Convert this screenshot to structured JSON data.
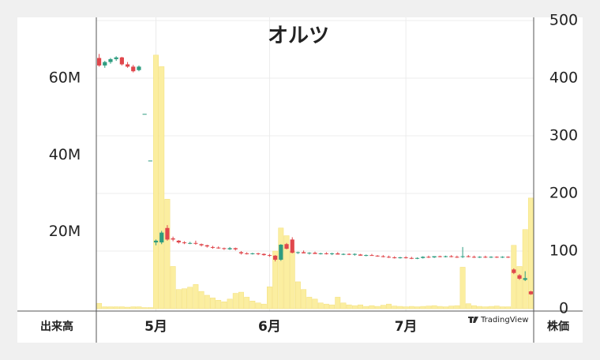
{
  "chart_data": {
    "type": "candlestick",
    "title": "オルツ",
    "y_label": "株価",
    "watermark": "TradingView",
    "categories": [
      null,
      null,
      null,
      null,
      null,
      null,
      null,
      null,
      null,
      null,
      "5月",
      null,
      null,
      null,
      null,
      null,
      null,
      null,
      null,
      null,
      null,
      null,
      null,
      null,
      null,
      null,
      null,
      null,
      null,
      null,
      "6月",
      null,
      null,
      null,
      null,
      null,
      null,
      null,
      null,
      null,
      null,
      null,
      null,
      null,
      null,
      null,
      null,
      null,
      null,
      null,
      null,
      null,
      null,
      null,
      "7月",
      null,
      null,
      null,
      null,
      null,
      null,
      null,
      null,
      null,
      null,
      null,
      null,
      null,
      null,
      null,
      null,
      null,
      null,
      null,
      null,
      null,
      null
    ],
    "open": [
      435,
      422,
      428,
      433,
      436,
      424,
      420,
      414,
      338,
      257,
      115,
      115,
      140,
      122,
      118,
      115,
      114,
      114,
      112,
      110,
      107,
      106,
      105,
      103,
      105,
      98,
      96,
      95,
      96,
      95,
      93,
      92,
      85,
      112,
      120,
      97,
      98,
      96,
      97,
      95,
      96,
      95,
      96,
      94,
      95,
      94,
      94,
      92,
      93,
      92,
      91,
      90,
      89,
      88,
      89,
      88,
      87,
      88,
      90,
      89,
      91,
      90,
      91,
      90,
      90,
      91,
      90,
      89,
      90,
      89,
      90,
      89,
      90,
      68,
      58,
      50,
      30
    ],
    "high": [
      442,
      430,
      435,
      438,
      437,
      428,
      423,
      422,
      338,
      257,
      120,
      135,
      145,
      125,
      119,
      117,
      116,
      118,
      113,
      111,
      109,
      108,
      106,
      107,
      106,
      100,
      98,
      97,
      97,
      96,
      95,
      93,
      112,
      114,
      124,
      99,
      101,
      98,
      99,
      97,
      98,
      97,
      98,
      96,
      96,
      96,
      95,
      94,
      95,
      93,
      93,
      92,
      91,
      90,
      91,
      90,
      89,
      91,
      92,
      91,
      92,
      92,
      93,
      92,
      107,
      93,
      92,
      91,
      92,
      91,
      91,
      91,
      91,
      70,
      60,
      65,
      31
    ],
    "low": [
      420,
      418,
      425,
      430,
      422,
      418,
      410,
      412,
      338,
      257,
      110,
      112,
      118,
      117,
      113,
      112,
      112,
      111,
      108,
      106,
      104,
      104,
      102,
      102,
      101,
      94,
      94,
      94,
      93,
      92,
      90,
      82,
      83,
      103,
      96,
      95,
      96,
      94,
      95,
      94,
      94,
      93,
      94,
      93,
      93,
      92,
      92,
      91,
      92,
      90,
      89,
      88,
      87,
      87,
      87,
      86,
      86,
      87,
      88,
      88,
      89,
      89,
      89,
      88,
      88,
      89,
      88,
      88,
      88,
      88,
      88,
      88,
      88,
      60,
      50,
      48,
      24
    ],
    "close": [
      422,
      428,
      433,
      436,
      424,
      420,
      412,
      420,
      338,
      257,
      118,
      132,
      120,
      120,
      115,
      114,
      114,
      113,
      110,
      108,
      106,
      105,
      104,
      105,
      103,
      96,
      95,
      96,
      95,
      93,
      92,
      85,
      111,
      104,
      97,
      98,
      96,
      97,
      95,
      96,
      95,
      96,
      94,
      95,
      94,
      95,
      92,
      93,
      92,
      91,
      90,
      89,
      88,
      89,
      88,
      87,
      88,
      90,
      89,
      91,
      90,
      91,
      90,
      89,
      91,
      90,
      89,
      90,
      89,
      90,
      89,
      90,
      89,
      62,
      52,
      53,
      25
    ],
    "up_color": "#2e9c80",
    "down_color": "#e0474c",
    "ylim": [
      0,
      500
    ],
    "yticks": [
      0,
      100,
      200,
      300,
      400,
      500
    ],
    "grid": true,
    "volume": {
      "y_label": "出来高",
      "color": "#fbeea0",
      "values": [
        1400000,
        500000,
        500000,
        500000,
        500000,
        400000,
        500000,
        500000,
        300000,
        300000,
        66000000,
        63000000,
        28500000,
        11000000,
        5000000,
        5200000,
        5600000,
        6300000,
        4500000,
        3500000,
        2800000,
        2200000,
        1800000,
        2500000,
        4000000,
        4300000,
        3000000,
        2000000,
        1500000,
        1200000,
        5700000,
        15000000,
        21000000,
        19000000,
        15000000,
        7000000,
        5000000,
        3000000,
        2500000,
        1500000,
        1200000,
        1000000,
        3000000,
        1500000,
        1000000,
        800000,
        1000000,
        600000,
        800000,
        600000,
        900000,
        1200000,
        700000,
        600000,
        500000,
        600000,
        500000,
        600000,
        700000,
        800000,
        600000,
        500000,
        700000,
        800000,
        10800000,
        1300000,
        800000,
        600000,
        500000,
        600000,
        700000,
        500000,
        500000,
        16500000,
        11000000,
        20600000,
        28800000
      ],
      "ylim": [
        0,
        75000000
      ],
      "yticks": [
        {
          "value": 20000000,
          "label": "20M"
        },
        {
          "value": 40000000,
          "label": "40M"
        },
        {
          "value": 60000000,
          "label": "60M"
        }
      ]
    }
  }
}
